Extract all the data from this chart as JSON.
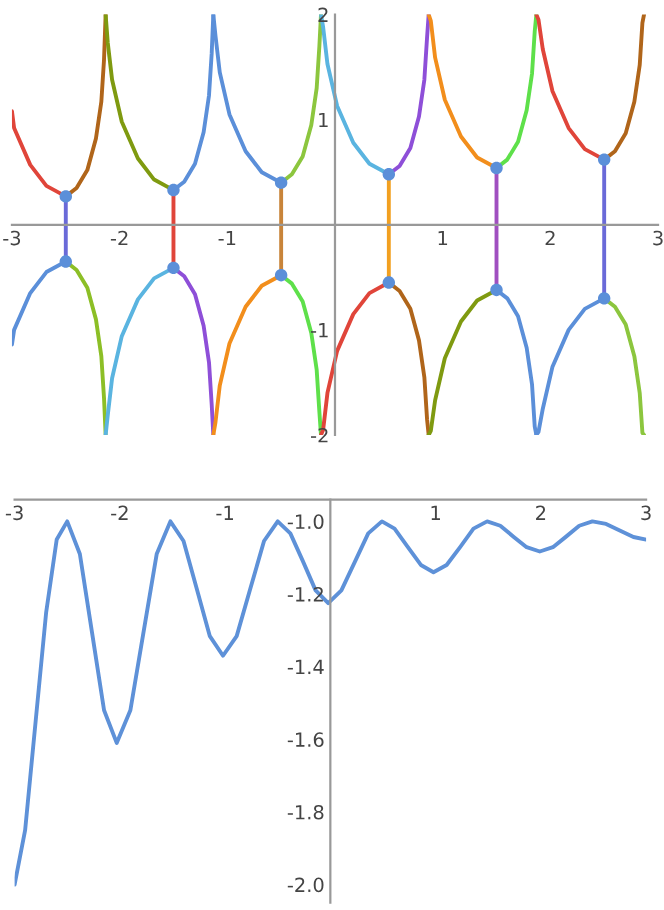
{
  "chart_data": [
    {
      "type": "line",
      "xlim": [
        -3,
        3
      ],
      "ylim": [
        -2,
        2
      ],
      "xticks": [
        -3,
        -2,
        -1,
        1,
        2,
        3
      ],
      "yticks": [
        -2,
        -1,
        1,
        2
      ],
      "series": [
        {
          "color": "#e0453a",
          "x": [
            -3.0,
            -2.98,
            -2.83,
            -2.68,
            -2.5
          ],
          "values": [
            1.08,
            0.92,
            0.57,
            0.37,
            0.27
          ]
        },
        {
          "color": "#b0651a",
          "x": [
            -2.5,
            -2.4,
            -2.3,
            -2.22,
            -2.17,
            -2.145,
            -2.13
          ],
          "values": [
            0.27,
            0.35,
            0.52,
            0.82,
            1.17,
            1.57,
            2
          ]
        },
        {
          "color": "#5b8fd9",
          "x": [
            -3.0,
            -2.98,
            -2.83,
            -2.68,
            -2.5
          ],
          "values": [
            -1.14,
            -1.0,
            -0.65,
            -0.45,
            -0.35
          ]
        },
        {
          "color": "#8cbf26",
          "x": [
            -2.5,
            -2.4,
            -2.3,
            -2.22,
            -2.17,
            -2.145,
            -2.13
          ],
          "values": [
            -0.35,
            -0.43,
            -0.6,
            -0.9,
            -1.25,
            -1.65,
            -2
          ]
        },
        {
          "color": "#7f9a10",
          "x": [
            -2.13,
            -2.11,
            -2.07,
            -1.98,
            -1.83,
            -1.68,
            -1.5
          ],
          "values": [
            2,
            1.73,
            1.38,
            0.98,
            0.63,
            0.43,
            0.33
          ]
        },
        {
          "color": "#5ab4e0",
          "x": [
            -2.13,
            -2.11,
            -2.07,
            -1.98,
            -1.83,
            -1.68,
            -1.5
          ],
          "values": [
            -2,
            -1.81,
            -1.46,
            -1.06,
            -0.71,
            -0.51,
            -0.41
          ]
        },
        {
          "color": "#5b8fd9",
          "x": [
            -1.5,
            -1.4,
            -1.3,
            -1.22,
            -1.17,
            -1.145,
            -1.13
          ],
          "values": [
            0.33,
            0.41,
            0.58,
            0.88,
            1.23,
            1.63,
            2
          ]
        },
        {
          "color": "#8e4fd8",
          "x": [
            -1.5,
            -1.4,
            -1.3,
            -1.22,
            -1.17,
            -1.145,
            -1.13
          ],
          "values": [
            -0.41,
            -0.49,
            -0.66,
            -0.96,
            -1.31,
            -1.71,
            -2
          ]
        },
        {
          "color": "#5b8fd9",
          "x": [
            -1.13,
            -1.11,
            -1.07,
            -0.98,
            -0.83,
            -0.68,
            -0.5
          ],
          "values": [
            2,
            1.8,
            1.45,
            1.05,
            0.7,
            0.5,
            0.4
          ]
        },
        {
          "color": "#f28e1c",
          "x": [
            -1.13,
            -1.11,
            -1.07,
            -0.98,
            -0.83,
            -0.68,
            -0.5
          ],
          "values": [
            -2,
            -1.88,
            -1.53,
            -1.13,
            -0.78,
            -0.58,
            -0.48
          ]
        },
        {
          "color": "#8cc63e",
          "x": [
            -0.5,
            -0.4,
            -0.3,
            -0.22,
            -0.17,
            -0.145,
            -0.13
          ],
          "values": [
            0.4,
            0.48,
            0.65,
            0.95,
            1.3,
            1.7,
            2
          ]
        },
        {
          "color": "#5ee04a",
          "x": [
            -0.5,
            -0.4,
            -0.3,
            -0.22,
            -0.17,
            -0.145,
            -0.13
          ],
          "values": [
            -0.48,
            -0.56,
            -0.73,
            -1.03,
            -1.38,
            -1.78,
            -2
          ]
        },
        {
          "color": "#5ab4e0",
          "x": [
            -0.13,
            -0.11,
            -0.07,
            0.02,
            0.17,
            0.32,
            0.5
          ],
          "values": [
            2,
            1.88,
            1.53,
            1.13,
            0.78,
            0.58,
            0.48
          ]
        },
        {
          "color": "#e0453a",
          "x": [
            -0.13,
            -0.11,
            -0.07,
            0.02,
            0.17,
            0.32,
            0.5
          ],
          "values": [
            -2,
            -1.95,
            -1.6,
            -1.2,
            -0.85,
            -0.65,
            -0.55
          ]
        },
        {
          "color": "#8e4fd8",
          "x": [
            0.5,
            0.6,
            0.7,
            0.78,
            0.83,
            0.855,
            0.87
          ],
          "values": [
            0.48,
            0.56,
            0.73,
            1.03,
            1.38,
            1.78,
            2
          ]
        },
        {
          "color": "#b0651a",
          "x": [
            0.5,
            0.6,
            0.7,
            0.78,
            0.83,
            0.855,
            0.87
          ],
          "values": [
            -0.55,
            -0.63,
            -0.8,
            -1.1,
            -1.45,
            -1.85,
            -2
          ]
        },
        {
          "color": "#f28e1c",
          "x": [
            0.87,
            0.89,
            0.93,
            1.02,
            1.17,
            1.32,
            1.5
          ],
          "values": [
            2,
            1.94,
            1.59,
            1.19,
            0.84,
            0.64,
            0.54
          ]
        },
        {
          "color": "#7f9a10",
          "x": [
            0.87,
            0.89,
            0.93,
            1.02,
            1.17,
            1.32,
            1.5
          ],
          "values": [
            -2,
            -1.96,
            -1.67,
            -1.27,
            -0.92,
            -0.72,
            -0.62
          ]
        },
        {
          "color": "#5ee04a",
          "x": [
            1.5,
            1.6,
            1.7,
            1.78,
            1.83,
            1.855,
            1.87
          ],
          "values": [
            0.54,
            0.62,
            0.79,
            1.09,
            1.44,
            1.84,
            2
          ]
        },
        {
          "color": "#5b8fd9",
          "x": [
            1.5,
            1.6,
            1.7,
            1.78,
            1.83,
            1.855,
            1.87
          ],
          "values": [
            -0.62,
            -0.7,
            -0.87,
            -1.17,
            -1.52,
            -1.92,
            -2
          ]
        },
        {
          "color": "#e0453a",
          "x": [
            1.87,
            1.89,
            1.93,
            2.02,
            2.17,
            2.32,
            2.5
          ],
          "values": [
            2,
            1.95,
            1.67,
            1.27,
            0.92,
            0.72,
            0.62
          ]
        },
        {
          "color": "#5b8fd9",
          "x": [
            1.87,
            1.89,
            1.93,
            2.02,
            2.17,
            2.32,
            2.5
          ],
          "values": [
            -2,
            -1.97,
            -1.75,
            -1.35,
            -1.0,
            -0.8,
            -0.7
          ]
        },
        {
          "color": "#b0651a",
          "x": [
            2.5,
            2.6,
            2.7,
            2.78,
            2.83,
            2.855,
            2.87
          ],
          "values": [
            0.62,
            0.7,
            0.87,
            1.17,
            1.52,
            1.92,
            2
          ]
        },
        {
          "color": "#8cc63e",
          "x": [
            2.5,
            2.6,
            2.7,
            2.78,
            2.83,
            2.855,
            2.87
          ],
          "values": [
            -0.7,
            -0.78,
            -0.95,
            -1.25,
            -1.6,
            -1.98,
            -2
          ]
        },
        {
          "color": "#6a6ad8",
          "x": [
            -2.5,
            -2.5
          ],
          "values": [
            -0.35,
            0.27
          ]
        },
        {
          "color": "#e0453a",
          "x": [
            -1.5,
            -1.5
          ],
          "values": [
            -0.41,
            0.33
          ]
        },
        {
          "color": "#c8843a",
          "x": [
            -0.5,
            -0.5
          ],
          "values": [
            -0.48,
            0.4
          ]
        },
        {
          "color": "#f2a020",
          "x": [
            0.5,
            0.5
          ],
          "values": [
            -0.55,
            0.48
          ]
        },
        {
          "color": "#a04fc0",
          "x": [
            1.5,
            1.5
          ],
          "values": [
            -0.62,
            0.54
          ]
        },
        {
          "color": "#6a6ad8",
          "x": [
            2.5,
            2.5
          ],
          "values": [
            -0.7,
            0.62
          ]
        },
        {
          "type": "scatter",
          "color": "#5b8fd9",
          "x": [
            -2.5,
            -2.5,
            -1.5,
            -1.5,
            -0.5,
            -0.5,
            0.5,
            0.5,
            1.5,
            1.5,
            2.5,
            2.5
          ],
          "values": [
            0.27,
            -0.35,
            0.33,
            -0.41,
            0.4,
            -0.48,
            0.48,
            -0.55,
            0.54,
            -0.62,
            0.62,
            -0.7
          ]
        }
      ]
    },
    {
      "type": "line",
      "xlim": [
        -3,
        3
      ],
      "ylim": [
        -2.05,
        -0.94
      ],
      "xticks": [
        -3,
        -2,
        -1,
        1,
        2,
        3
      ],
      "yticks": [
        {
          "value": -2.0,
          "label": "-2.0"
        },
        -1.8,
        -1.6,
        -1.4,
        -1.2,
        {
          "value": -1.0,
          "label": "-1.0"
        }
      ],
      "series": [
        {
          "color": "#5e91d8",
          "x": [
            -3.0,
            -2.9,
            -2.8,
            -2.7,
            -2.6,
            -2.5,
            -2.38,
            -2.265,
            -2.15,
            -2.03,
            -1.9,
            -1.775,
            -1.65,
            -1.52,
            -1.395,
            -1.27,
            -1.145,
            -1.02,
            -0.89,
            -0.76,
            -0.63,
            -0.5,
            -0.38,
            -0.26,
            -0.14,
            -0.02,
            0.105,
            0.235,
            0.36,
            0.49,
            0.61,
            0.735,
            0.86,
            0.98,
            1.105,
            1.235,
            1.36,
            1.49,
            1.615,
            1.74,
            1.865,
            1.99,
            2.115,
            2.24,
            2.365,
            2.49,
            2.62,
            2.75,
            2.88,
            3.0
          ],
          "values": [
            -2.0,
            -1.85,
            -1.55,
            -1.25,
            -1.05,
            -1.0,
            -1.09,
            -1.305,
            -1.52,
            -1.61,
            -1.52,
            -1.305,
            -1.09,
            -1.0,
            -1.054,
            -1.185,
            -1.316,
            -1.37,
            -1.316,
            -1.185,
            -1.054,
            -1.0,
            -1.033,
            -1.11,
            -1.19,
            -1.225,
            -1.19,
            -1.11,
            -1.033,
            -1.0,
            -1.02,
            -1.07,
            -1.12,
            -1.14,
            -1.12,
            -1.07,
            -1.02,
            -1.0,
            -1.012,
            -1.042,
            -1.071,
            -1.083,
            -1.071,
            -1.042,
            -1.012,
            -1.0,
            -1.007,
            -1.025,
            -1.043,
            -1.05
          ]
        }
      ]
    }
  ]
}
